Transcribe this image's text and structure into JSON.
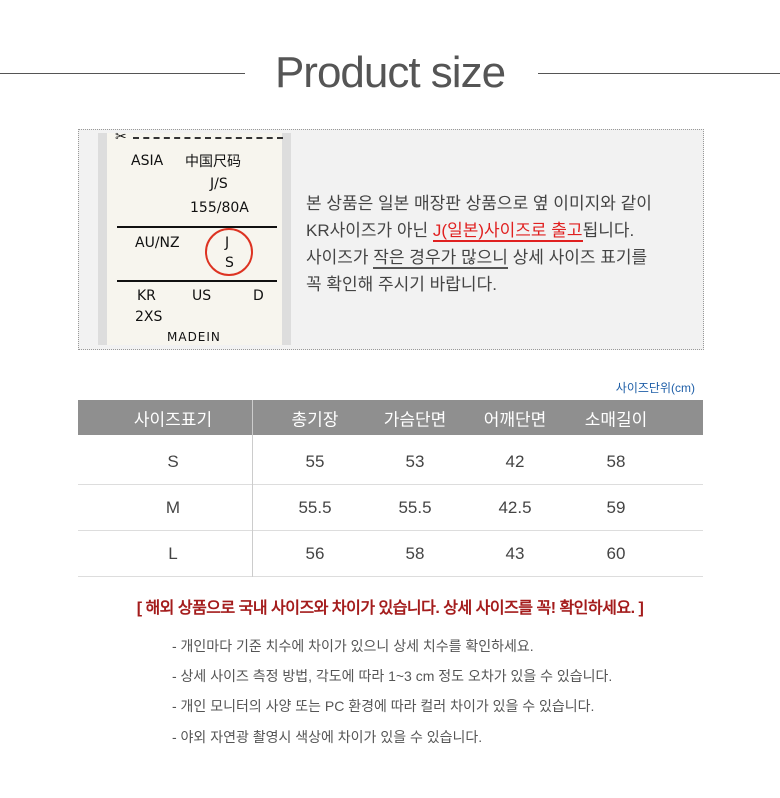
{
  "title": "Product size",
  "tag_label": {
    "asia": "ASIA",
    "cn": "中国尺码",
    "js": "J/S",
    "num": "155/80A",
    "aunz": "AU/NZ",
    "j": "J",
    "s": "S",
    "kr": "KR",
    "us": "US",
    "d": "D",
    "krsize": "2XS",
    "made": "MADEIN"
  },
  "description": {
    "line1": "본 상품은 일본 매장판 상품으로 옆 이미지와 같이",
    "line2_pre": "KR사이즈가 아닌 ",
    "line2_red": "J(일본)사이즈로 출고",
    "line2_post": "됩니다.",
    "line3_pre": "사이즈가 ",
    "line3_ul": "작은 경우가 많으니",
    "line3_post": " 상세 사이즈 표기를",
    "line4": "꼭 확인해 주시기 바랍니다."
  },
  "unit_label": "사이즈단위(cm)",
  "table": {
    "headers": [
      "사이즈표기",
      "총기장",
      "가슴단면",
      "어깨단면",
      "소매길이"
    ],
    "rows": [
      [
        "S",
        "55",
        "53",
        "42",
        "58"
      ],
      [
        "M",
        "55.5",
        "55.5",
        "42.5",
        "59"
      ],
      [
        "L",
        "56",
        "58",
        "43",
        "60"
      ]
    ]
  },
  "warning": "[ 해외 상품으로 국내 사이즈와 차이가 있습니다. 상세 사이즈를 꼭! 확인하세요. ]",
  "notes": [
    "- 개인마다 기준 치수에 차이가 있으니 상세 치수를 확인하세요.",
    "- 상세 사이즈 측정 방법, 각도에 따라 1~3 cm 정도 오차가 있을 수 있습니다.",
    "- 개인 모니터의 사양 또는 PC 환경에 따라 컬러 차이가 있을 수 있습니다.",
    "- 야외 자연광 촬영시 색상에 차이가 있을 수 있습니다."
  ],
  "colors": {
    "highlight": "#e02020",
    "warning": "#a41c1c",
    "header_bg": "#8f8f8f",
    "unit": "#1f5fa8"
  }
}
